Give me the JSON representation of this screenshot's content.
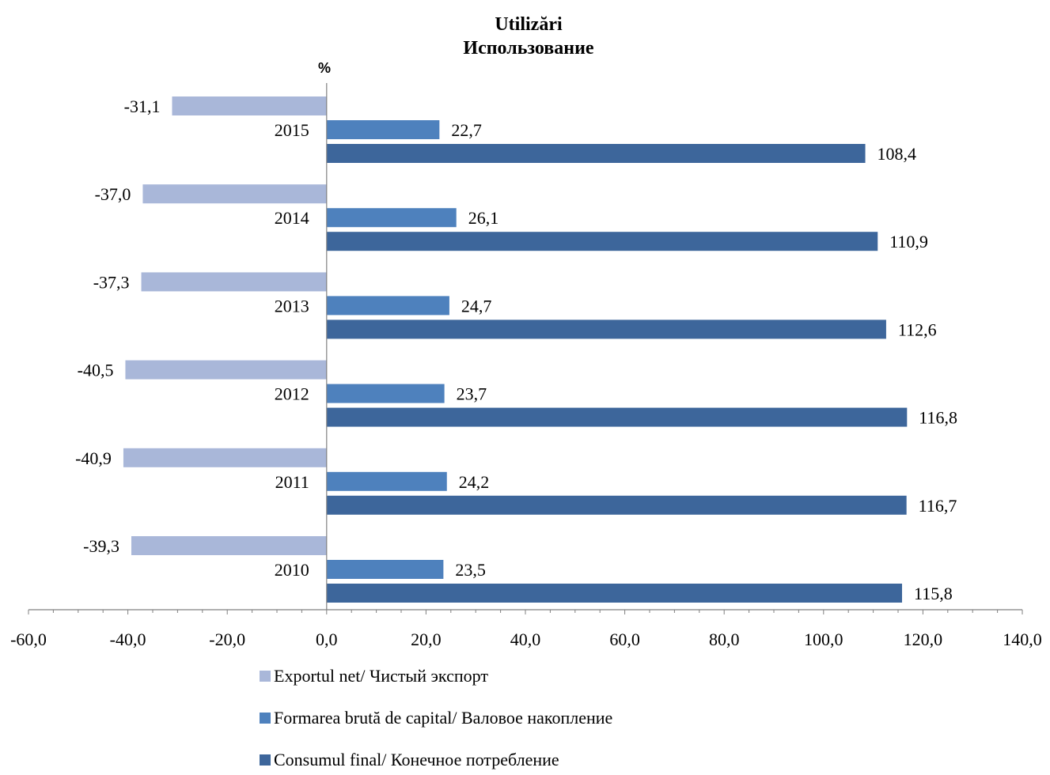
{
  "chart_data": {
    "type": "bar",
    "orientation": "horizontal",
    "title": "Utilizări",
    "subtitle": "Использование",
    "unit_label": "%",
    "categories": [
      "2015",
      "2014",
      "2013",
      "2012",
      "2011",
      "2010"
    ],
    "series": [
      {
        "name": "Exportul net/ Чистый экспорт",
        "color": "#a9b7d9",
        "values": [
          -31.1,
          -37.0,
          -37.3,
          -40.5,
          -40.9,
          -39.3
        ],
        "labels": [
          "-31,1",
          "-37,0",
          "-37,3",
          "-40,5",
          "-40,9",
          "-39,3"
        ]
      },
      {
        "name": "Formarea brută de capital/ Валовое накопление",
        "color": "#4e81bd",
        "values": [
          22.7,
          26.1,
          24.7,
          23.7,
          24.2,
          23.5
        ],
        "labels": [
          "22,7",
          "26,1",
          "24,7",
          "23,7",
          "24,2",
          "23,5"
        ]
      },
      {
        "name": "Consumul final/ Конечное потребление",
        "color": "#3d669b",
        "values": [
          108.4,
          110.9,
          112.6,
          116.8,
          116.7,
          115.8
        ],
        "labels": [
          "108,4",
          "110,9",
          "112,6",
          "116,8",
          "116,7",
          "115,8"
        ]
      }
    ],
    "xlim": [
      -60,
      140
    ],
    "xticks": [
      -60,
      -40,
      -20,
      0,
      20,
      40,
      60,
      80,
      100,
      120,
      140
    ],
    "xtick_labels": [
      "-60,0",
      "-40,0",
      "-20,0",
      "0,0",
      "20,0",
      "40,0",
      "60,0",
      "80,0",
      "100,0",
      "120,0",
      "140,0"
    ],
    "grid": false,
    "legend_position": "bottom"
  }
}
